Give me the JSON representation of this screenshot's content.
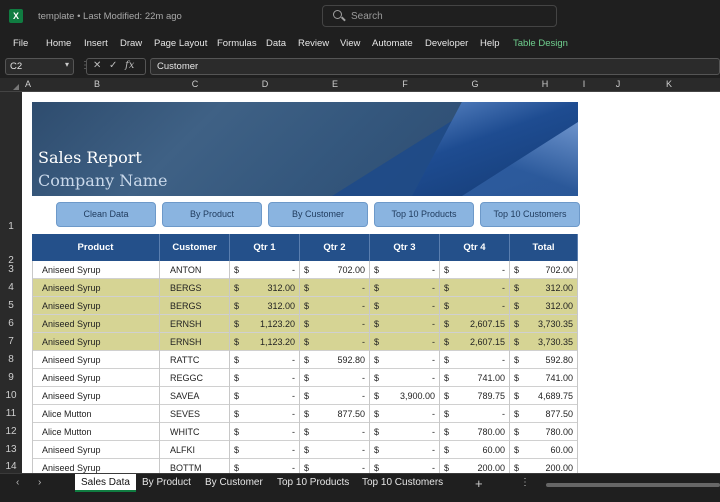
{
  "window": {
    "app_icon": "X",
    "title": "template • Last Modified: 22m ago",
    "search_placeholder": "Search"
  },
  "menu": [
    "File",
    "Home",
    "Insert",
    "Draw",
    "Page Layout",
    "Formulas",
    "Data",
    "Review",
    "View",
    "Automate",
    "Developer",
    "Help",
    "Table Design"
  ],
  "formula_bar": {
    "cell_ref": "C2",
    "fx": "fx",
    "value": "Customer"
  },
  "columns": [
    "A",
    "B",
    "C",
    "D",
    "E",
    "F",
    "G",
    "H",
    "I",
    "J",
    "K"
  ],
  "rows": [
    "1",
    "2",
    "3",
    "4",
    "5",
    "6",
    "7",
    "8",
    "9",
    "10",
    "11",
    "12",
    "13",
    "14"
  ],
  "banner": {
    "title": "Sales Report",
    "subtitle": "Company Name"
  },
  "nav_buttons": [
    "Clean Data",
    "By Product",
    "By Customer",
    "Top 10 Products",
    "Top 10 Customers"
  ],
  "table": {
    "headers": [
      "Product",
      "Customer",
      "Qtr 1",
      "Qtr 2",
      "Qtr 3",
      "Qtr 4",
      "Total"
    ],
    "currency": "$",
    "highlight_color": "#d6d494",
    "rows": [
      {
        "product": "Aniseed Syrup",
        "customer": "ANTON",
        "q1": "-",
        "q2": "702.00",
        "q3": "-",
        "q4": "-",
        "total": "702.00",
        "highlight": false
      },
      {
        "product": "Aniseed Syrup",
        "customer": "BERGS",
        "q1": "312.00",
        "q2": "-",
        "q3": "-",
        "q4": "-",
        "total": "312.00",
        "highlight": true
      },
      {
        "product": "Aniseed Syrup",
        "customer": "BERGS",
        "q1": "312.00",
        "q2": "-",
        "q3": "-",
        "q4": "-",
        "total": "312.00",
        "highlight": true
      },
      {
        "product": "Aniseed Syrup",
        "customer": "ERNSH",
        "q1": "1,123.20",
        "q2": "-",
        "q3": "-",
        "q4": "2,607.15",
        "total": "3,730.35",
        "highlight": true
      },
      {
        "product": "Aniseed Syrup",
        "customer": "ERNSH",
        "q1": "1,123.20",
        "q2": "-",
        "q3": "-",
        "q4": "2,607.15",
        "total": "3,730.35",
        "highlight": true
      },
      {
        "product": "Aniseed Syrup",
        "customer": "RATTC",
        "q1": "-",
        "q2": "592.80",
        "q3": "-",
        "q4": "-",
        "total": "592.80",
        "highlight": false
      },
      {
        "product": "Aniseed Syrup",
        "customer": "REGGC",
        "q1": "-",
        "q2": "-",
        "q3": "-",
        "q4": "741.00",
        "total": "741.00",
        "highlight": false
      },
      {
        "product": "Aniseed Syrup",
        "customer": "SAVEA",
        "q1": "-",
        "q2": "-",
        "q3": "3,900.00",
        "q4": "789.75",
        "total": "4,689.75",
        "highlight": false
      },
      {
        "product": "Alice Mutton",
        "customer": "SEVES",
        "q1": "-",
        "q2": "877.50",
        "q3": "-",
        "q4": "-",
        "total": "877.50",
        "highlight": false
      },
      {
        "product": "Alice Mutton",
        "customer": "WHITC",
        "q1": "-",
        "q2": "-",
        "q3": "-",
        "q4": "780.00",
        "total": "780.00",
        "highlight": false
      },
      {
        "product": "Aniseed Syrup",
        "customer": "ALFKI",
        "q1": "-",
        "q2": "-",
        "q3": "-",
        "q4": "60.00",
        "total": "60.00",
        "highlight": false
      },
      {
        "product": "Aniseed Syrup",
        "customer": "BOTTM",
        "q1": "-",
        "q2": "-",
        "q3": "-",
        "q4": "200.00",
        "total": "200.00",
        "highlight": false
      }
    ]
  },
  "sheet_tabs": [
    "Sales Data",
    "By Product",
    "By Customer",
    "Top 10 Products",
    "Top 10 Customers"
  ],
  "active_tab": "Sales Data",
  "icons": {
    "search": "search-icon",
    "add_sheet": "plus-icon",
    "prev_sheet": "chevron-left-icon",
    "next_sheet": "chevron-right-icon"
  }
}
